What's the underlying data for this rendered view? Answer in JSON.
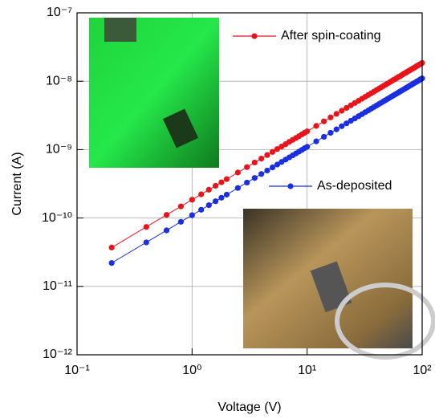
{
  "chart_data": {
    "type": "line",
    "xlabel": "Voltage (V)",
    "ylabel": "Current (A)",
    "x": [
      0.2,
      0.4,
      0.6,
      0.8,
      1,
      1.2,
      1.4,
      1.6,
      1.8,
      2,
      2.5,
      3,
      3.5,
      4,
      4.5,
      5,
      5.5,
      6,
      6.5,
      7,
      7.5,
      8,
      8.5,
      9,
      9.5,
      10,
      12,
      14,
      16,
      18,
      20,
      22,
      24,
      26,
      28,
      30,
      32,
      34,
      36,
      38,
      40,
      42,
      44,
      46,
      48,
      50,
      52,
      54,
      56,
      58,
      60,
      62,
      64,
      66,
      68,
      70,
      72,
      74,
      76,
      78,
      80,
      82,
      84,
      86,
      88,
      90,
      92,
      94,
      96,
      98,
      100
    ],
    "series": [
      {
        "name": "After spin-coating",
        "color": "#e8141c",
        "values": [
          3.7e-11,
          7.4e-11,
          1.11e-10,
          1.48e-10,
          1.85e-10,
          2.22e-10,
          2.59e-10,
          2.96e-10,
          3.33e-10,
          3.7e-10,
          4.63e-10,
          5.55e-10,
          6.48e-10,
          7.4e-10,
          8.33e-10,
          9.25e-10,
          1.02e-09,
          1.11e-09,
          1.2e-09,
          1.3e-09,
          1.39e-09,
          1.48e-09,
          1.57e-09,
          1.67e-09,
          1.76e-09,
          1.85e-09,
          2.22e-09,
          2.59e-09,
          2.96e-09,
          3.33e-09,
          3.7e-09,
          4.07e-09,
          4.44e-09,
          4.81e-09,
          5.18e-09,
          5.55e-09,
          5.92e-09,
          6.29e-09,
          6.66e-09,
          7.03e-09,
          7.4e-09,
          7.77e-09,
          8.14e-09,
          8.51e-09,
          8.88e-09,
          9.25e-09,
          9.62e-09,
          9.99e-09,
          1.04e-08,
          1.07e-08,
          1.11e-08,
          1.15e-08,
          1.18e-08,
          1.22e-08,
          1.26e-08,
          1.3e-08,
          1.33e-08,
          1.37e-08,
          1.41e-08,
          1.44e-08,
          1.48e-08,
          1.52e-08,
          1.55e-08,
          1.59e-08,
          1.63e-08,
          1.67e-08,
          1.7e-08,
          1.74e-08,
          1.78e-08,
          1.81e-08,
          1.85e-08
        ]
      },
      {
        "name": "As-deposited",
        "color": "#1a2fe0",
        "values": [
          2.2e-11,
          4.4e-11,
          6.6e-11,
          8.8e-11,
          1.1e-10,
          1.32e-10,
          1.54e-10,
          1.76e-10,
          1.98e-10,
          2.2e-10,
          2.75e-10,
          3.3e-10,
          3.85e-10,
          4.4e-10,
          4.95e-10,
          5.5e-10,
          6.05e-10,
          6.6e-10,
          7.15e-10,
          7.7e-10,
          8.25e-10,
          8.8e-10,
          9.35e-10,
          9.9e-10,
          1.05e-09,
          1.1e-09,
          1.32e-09,
          1.54e-09,
          1.76e-09,
          1.98e-09,
          2.2e-09,
          2.42e-09,
          2.64e-09,
          2.86e-09,
          3.08e-09,
          3.3e-09,
          3.52e-09,
          3.74e-09,
          3.96e-09,
          4.18e-09,
          4.4e-09,
          4.62e-09,
          4.84e-09,
          5.06e-09,
          5.28e-09,
          5.5e-09,
          5.72e-09,
          5.94e-09,
          6.16e-09,
          6.38e-09,
          6.6e-09,
          6.82e-09,
          7.04e-09,
          7.26e-09,
          7.48e-09,
          7.7e-09,
          7.92e-09,
          8.14e-09,
          8.36e-09,
          8.58e-09,
          8.8e-09,
          9.02e-09,
          9.24e-09,
          9.46e-09,
          9.68e-09,
          9.9e-09,
          1.01e-08,
          1.03e-08,
          1.06e-08,
          1.08e-08,
          1.1e-08
        ]
      }
    ],
    "xlog": true,
    "ylog": true,
    "xlim": [
      0.1,
      100
    ],
    "ylim": [
      1e-12,
      1e-07
    ],
    "xticks": [
      {
        "value": 0.1,
        "label": "10⁻¹"
      },
      {
        "value": 1,
        "label": "10⁰"
      },
      {
        "value": 10,
        "label": "10¹"
      },
      {
        "value": 100,
        "label": "10²"
      }
    ],
    "yticks": [
      {
        "value": 1e-12,
        "label": "10⁻¹²"
      },
      {
        "value": 1e-11,
        "label": "10⁻¹¹"
      },
      {
        "value": 1e-10,
        "label": "10⁻¹⁰"
      },
      {
        "value": 1e-09,
        "label": "10⁻⁹"
      },
      {
        "value": 1e-08,
        "label": "10⁻⁸"
      },
      {
        "value": 1e-07,
        "label": "10⁻⁷"
      }
    ],
    "grid": true
  }
}
